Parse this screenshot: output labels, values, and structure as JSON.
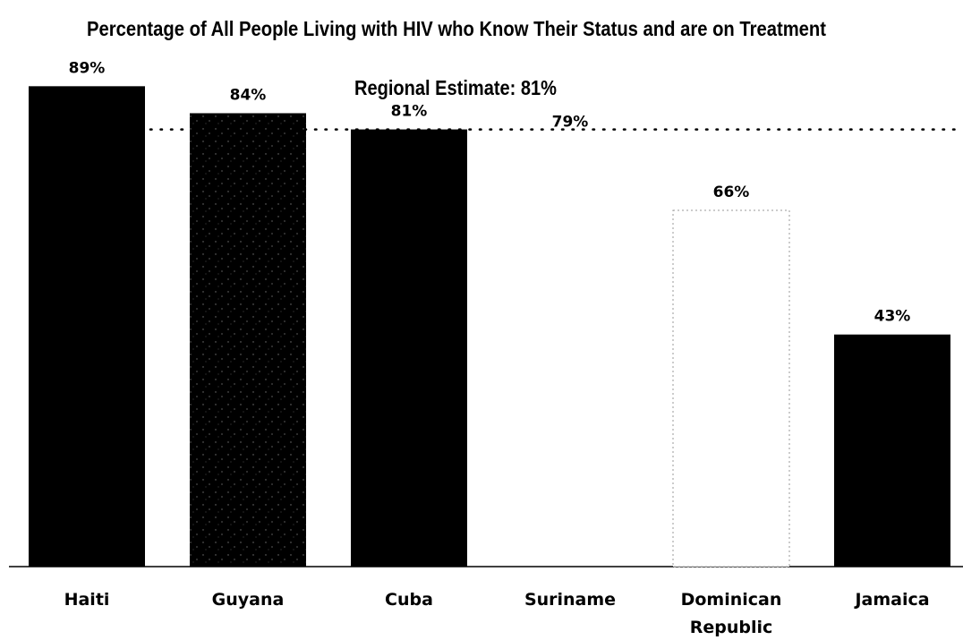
{
  "chart_data": {
    "type": "bar",
    "title": "Percentage of All People Living with HIV who Know Their Status and are on Treatment",
    "subtitle": "Regional Estimate: 81%",
    "categories": [
      "Haiti",
      "Guyana",
      "Cuba",
      "Suriname",
      "Dominican Republic",
      "Jamaica"
    ],
    "category_lines": [
      [
        "Haiti"
      ],
      [
        "Guyana"
      ],
      [
        "Cuba"
      ],
      [
        "Suriname"
      ],
      [
        "Dominican",
        "Republic"
      ],
      [
        "Jamaica"
      ]
    ],
    "values": [
      89,
      84,
      81,
      79,
      66,
      43
    ],
    "value_labels": [
      "89%",
      "84%",
      "81%",
      "79%",
      "66%",
      "43%"
    ],
    "bar_styles": [
      "solid",
      "speckled",
      "solid",
      "none",
      "dotted-outline",
      "solid"
    ],
    "reference_line": {
      "value": 81,
      "style": "dotted"
    },
    "ylim": [
      0,
      100
    ],
    "xlabel": "",
    "ylabel": "",
    "grid": false,
    "colors": {
      "bar": "#000000",
      "background": "#ffffff",
      "outline": "#999999"
    }
  }
}
